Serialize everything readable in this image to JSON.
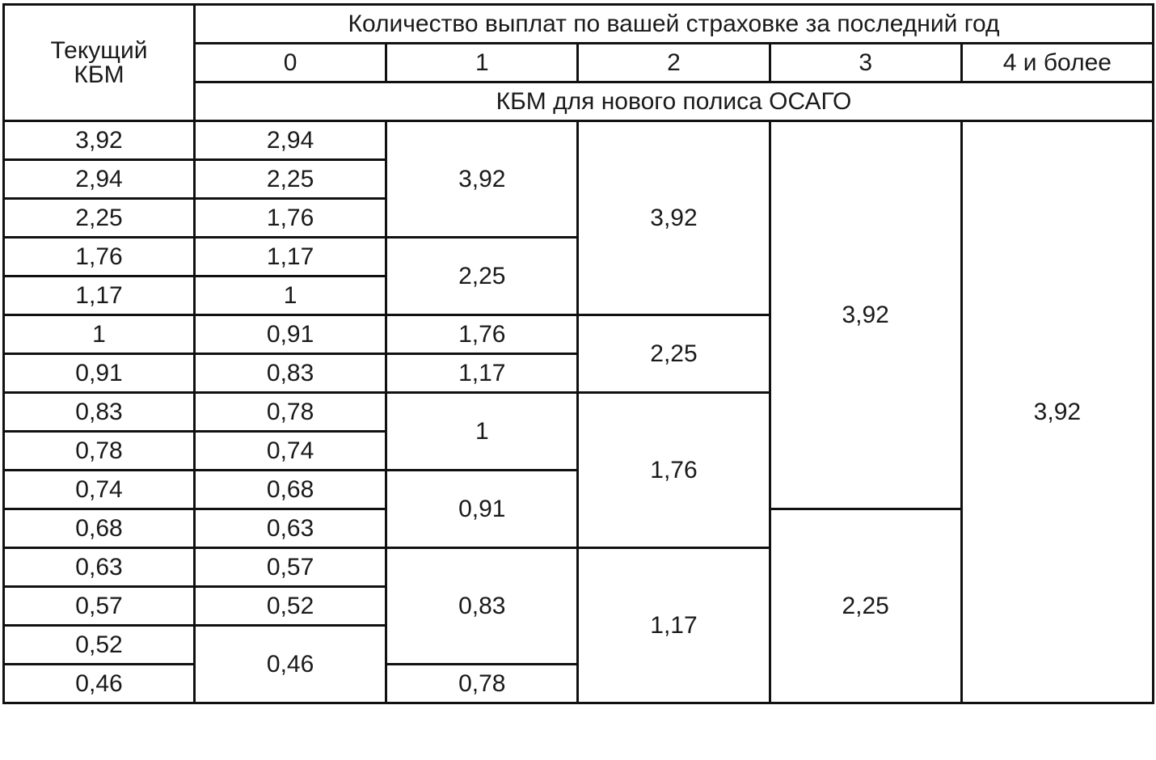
{
  "table": {
    "header": {
      "current": "Текущий КБМ",
      "group": "Количество выплат по вашей страховке за последний год",
      "counts": [
        "0",
        "1",
        "2",
        "3",
        "4 и более"
      ],
      "subtitle": "КБМ для нового полиса ОСАГО"
    },
    "rows": [
      [
        "3,92",
        "2,94",
        "3,92",
        "3,92",
        "3,92",
        "3,92"
      ],
      [
        "2,94",
        "2,25"
      ],
      [
        "2,25",
        "1,76"
      ],
      [
        "1,76",
        "1,17",
        "2,25"
      ],
      [
        "1,17",
        "1"
      ],
      [
        "1",
        "0,91",
        "1,76",
        "2,25"
      ],
      [
        "0,91",
        "0,83",
        "1,17"
      ],
      [
        "0,83",
        "0,78",
        "1",
        "1,76"
      ],
      [
        "0,78",
        "0,74"
      ],
      [
        "0,74",
        "0,68",
        "0,91"
      ],
      [
        "0,68",
        "0,63",
        "2,25"
      ],
      [
        "0,63",
        "0,57",
        "0,83",
        "1,17"
      ],
      [
        "0,57",
        "0,52"
      ],
      [
        "0,52",
        "0,46"
      ],
      [
        "0,46",
        "0,78"
      ]
    ]
  }
}
